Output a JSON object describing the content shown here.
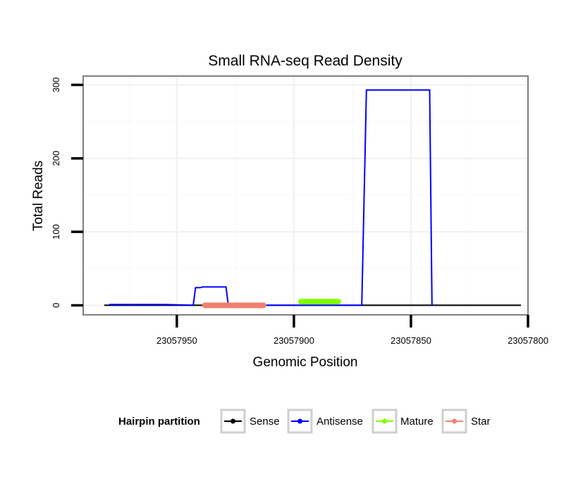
{
  "chart_data": {
    "type": "line",
    "title": "Small RNA-seq Read Density",
    "xlabel": "Genomic Position",
    "ylabel": "Total Reads",
    "x_reversed": true,
    "xlim": [
      23057990,
      23057800
    ],
    "ylim": [
      -13,
      312
    ],
    "x_ticks": [
      23057950,
      23057900,
      23057850,
      23057800
    ],
    "x_tick_labels": [
      "23057950",
      "23057900",
      "23057850",
      "23057800"
    ],
    "y_ticks": [
      0,
      100,
      200,
      300
    ],
    "y_tick_labels": [
      "0",
      "100",
      "200",
      "300"
    ],
    "grid": true,
    "legend": {
      "title": "Hairpin partition",
      "position": "bottom",
      "items": [
        "Sense",
        "Antisense",
        "Mature",
        "Star"
      ]
    },
    "series": [
      {
        "name": "Sense",
        "color": "#000000",
        "points": [
          [
            23057981,
            0
          ],
          [
            23057803,
            0
          ]
        ]
      },
      {
        "name": "Antisense",
        "color": "#0000ff",
        "points": [
          [
            23057979,
            1
          ],
          [
            23057955,
            1
          ],
          [
            23057943,
            0
          ],
          [
            23057942,
            24
          ],
          [
            23057940,
            24
          ],
          [
            23057939,
            25
          ],
          [
            23057929,
            25
          ],
          [
            23057928,
            0
          ],
          [
            23057871,
            0
          ],
          [
            23057869,
            293
          ],
          [
            23057842,
            293
          ],
          [
            23057841,
            0
          ]
        ]
      }
    ],
    "segments": [
      {
        "name": "Star",
        "color": "#f08070",
        "x_start": 23057938,
        "x_end": 23057913,
        "y": 0
      },
      {
        "name": "Mature",
        "color": "#80ff00",
        "x_start": 23057897,
        "x_end": 23057881,
        "y": 5
      }
    ]
  }
}
